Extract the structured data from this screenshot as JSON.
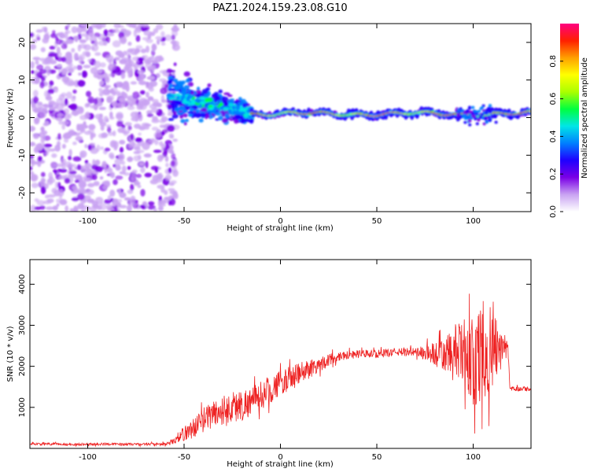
{
  "title": "PAZ1.2024.159.23.08.G10",
  "chart_data": [
    {
      "type": "heatmap",
      "xlabel": "Height of straight line (km)",
      "ylabel": "Frequency (Hz)",
      "xlim": [
        -130,
        130
      ],
      "ylim": [
        -25,
        25
      ],
      "xticks": [
        -100,
        -50,
        0,
        50,
        100
      ],
      "yticks": [
        -20,
        -10,
        0,
        10,
        20
      ],
      "colorbar": {
        "label": "Normalized spectral amplitude",
        "range": [
          0,
          1
        ],
        "ticks": [
          "0.0",
          "0.2",
          "0.4",
          "0.6",
          "0.8"
        ],
        "colormap": [
          "#ffffff",
          "#c9a3f2",
          "#7a00e6",
          "#1f00ff",
          "#0080ff",
          "#00e6e6",
          "#00ff40",
          "#aaff00",
          "#ffff00",
          "#ffa000",
          "#ff2000",
          "#ff0080"
        ]
      },
      "regions": [
        {
          "x_range": [
            -130,
            -58
          ],
          "freq_center": 0,
          "freq_spread": 25,
          "amplitude": "0.05-0.2"
        },
        {
          "x_range": [
            -58,
            -15
          ],
          "freq_center_start": 6,
          "freq_center_end": 1,
          "freq_spread": 4,
          "amplitude": "0.2-0.5"
        },
        {
          "x_range": [
            -15,
            130
          ],
          "freq_center": 1,
          "freq_spread": 1.5,
          "amplitude": "0.3-1.0"
        }
      ],
      "grid": false
    },
    {
      "type": "line",
      "xlabel": "Height of straight line (km)",
      "ylabel": "SNR (10 * v/v)",
      "xlim": [
        -130,
        130
      ],
      "ylim": [
        0,
        4600
      ],
      "xticks": [
        -100,
        -50,
        0,
        50,
        100
      ],
      "yticks": [
        1000,
        2000,
        3000,
        4000
      ],
      "series": [
        {
          "color": "#ee2222",
          "x": [
            -130,
            -110,
            -90,
            -70,
            -58,
            -52,
            -45,
            -40,
            -35,
            -30,
            -25,
            -20,
            -15,
            -10,
            -5,
            0,
            5,
            10,
            15,
            20,
            25,
            30,
            40,
            50,
            60,
            70,
            80,
            85,
            90,
            95,
            100,
            105,
            110,
            115,
            118,
            119,
            125,
            130
          ],
          "y": [
            110,
            100,
            105,
            100,
            110,
            300,
            500,
            700,
            850,
            900,
            1000,
            1050,
            1150,
            1300,
            1450,
            1600,
            1700,
            1800,
            1950,
            2050,
            2150,
            2250,
            2300,
            2300,
            2350,
            2350,
            2300,
            2250,
            2300,
            2350,
            2100,
            2400,
            2500,
            2500,
            2450,
            1450,
            1450,
            1450
          ],
          "noise": [
            30,
            30,
            30,
            30,
            40,
            150,
            250,
            300,
            350,
            400,
            400,
            400,
            350,
            350,
            350,
            300,
            300,
            300,
            250,
            200,
            150,
            120,
            100,
            100,
            100,
            100,
            300,
            450,
            700,
            800,
            1100,
            1200,
            1200,
            200,
            150,
            60,
            60,
            60
          ]
        }
      ],
      "grid": false
    }
  ]
}
